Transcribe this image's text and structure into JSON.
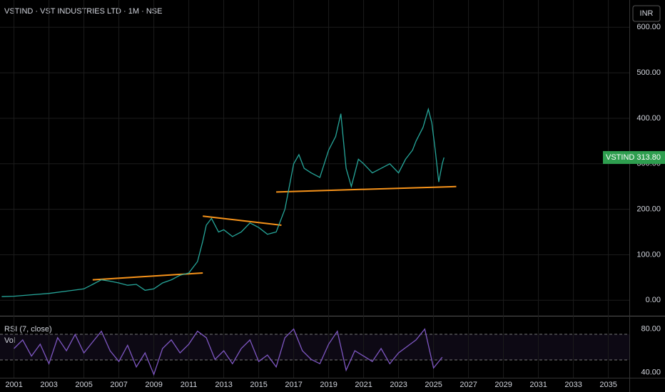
{
  "chart_data": [
    {
      "type": "line",
      "title": "VSTIND · VST INDUSTRIES LTD · 1M · NSE",
      "currency": "INR",
      "symbol": "VSTIND",
      "x": [
        2000.3,
        2001,
        2002,
        2003,
        2004,
        2005,
        2005.5,
        2006,
        2006.5,
        2007,
        2007.5,
        2008,
        2008.5,
        2009,
        2009.5,
        2010,
        2010.5,
        2011,
        2011.5,
        2011.8,
        2012,
        2012.3,
        2012.7,
        2013,
        2013.5,
        2014,
        2014.5,
        2015,
        2015.5,
        2016,
        2016.5,
        2017,
        2017.3,
        2017.6,
        2018,
        2018.5,
        2019,
        2019.4,
        2019.7,
        2020,
        2020.3,
        2020.7,
        2021,
        2021.5,
        2022,
        2022.5,
        2023,
        2023.4,
        2023.8,
        2024,
        2024.4,
        2024.7,
        2024.9,
        2025.1,
        2025.3,
        2025.5,
        2025.6
      ],
      "series": [
        {
          "name": "VSTIND",
          "color": "#26a69a",
          "values": [
            8,
            9,
            12,
            15,
            20,
            25,
            35,
            45,
            42,
            38,
            33,
            35,
            22,
            25,
            38,
            45,
            55,
            60,
            85,
            130,
            165,
            180,
            150,
            155,
            140,
            150,
            170,
            160,
            145,
            150,
            200,
            300,
            320,
            290,
            280,
            270,
            330,
            360,
            410,
            290,
            250,
            310,
            300,
            280,
            290,
            300,
            280,
            310,
            330,
            350,
            380,
            420,
            390,
            330,
            260,
            300,
            313.8
          ],
          "value_labels": [
            null,
            null,
            null,
            null,
            null,
            null,
            null,
            null,
            null,
            null,
            null,
            null,
            null,
            null,
            null,
            null,
            null,
            null,
            null,
            null,
            null,
            null,
            null,
            null,
            null,
            null,
            null,
            null,
            null,
            null,
            null,
            null,
            null,
            null,
            null,
            null,
            null,
            null,
            null,
            null,
            null,
            null,
            null,
            null,
            null,
            null,
            null,
            null,
            null,
            null,
            null,
            null,
            null,
            null,
            null,
            null,
            "313.80"
          ]
        }
      ],
      "trendlines": [
        {
          "color": "#f7931a",
          "x": [
            2005.5,
            2011.8
          ],
          "values": [
            45,
            60
          ]
        },
        {
          "color": "#f7931a",
          "x": [
            2011.8,
            2016.3
          ],
          "values": [
            185,
            165
          ]
        },
        {
          "color": "#f7931a",
          "x": [
            2016,
            2026.3
          ],
          "values": [
            238,
            250
          ]
        }
      ],
      "xlim": [
        2000.2,
        2036.2
      ],
      "xticks": [
        2001,
        2003,
        2005,
        2007,
        2009,
        2011,
        2013,
        2015,
        2017,
        2019,
        2021,
        2023,
        2025,
        2027,
        2029,
        2031,
        2033,
        2035
      ],
      "ylim": [
        -34,
        660
      ],
      "yticks": [
        {
          "value": 0,
          "label": "0.00"
        },
        {
          "value": 100,
          "label": "100.00"
        },
        {
          "value": 200,
          "label": "200.00"
        },
        {
          "value": 300,
          "label": "300.00"
        },
        {
          "value": 400,
          "label": "400.00"
        },
        {
          "value": 500,
          "label": "500.00"
        },
        {
          "value": 600,
          "label": "600.00"
        }
      ],
      "grid": true
    },
    {
      "type": "line",
      "title": "RSI (7, close)",
      "subtitle": "Vol",
      "x": [
        2001,
        2001.5,
        2002,
        2002.5,
        2003,
        2003.5,
        2004,
        2004.5,
        2005,
        2005.5,
        2006,
        2006.5,
        2007,
        2007.5,
        2008,
        2008.5,
        2009,
        2009.5,
        2010,
        2010.5,
        2011,
        2011.5,
        2012,
        2012.5,
        2013,
        2013.5,
        2014,
        2014.5,
        2015,
        2015.5,
        2016,
        2016.5,
        2017,
        2017.5,
        2018,
        2018.5,
        2019,
        2019.5,
        2020,
        2020.5,
        2021,
        2021.5,
        2022,
        2022.5,
        2023,
        2023.5,
        2024,
        2024.5,
        2025,
        2025.5
      ],
      "series": [
        {
          "name": "RSI",
          "color": "#7e57c2",
          "values": [
            62,
            70,
            55,
            66,
            48,
            72,
            60,
            75,
            58,
            68,
            78,
            60,
            50,
            65,
            45,
            58,
            38,
            62,
            70,
            58,
            66,
            78,
            72,
            52,
            60,
            48,
            62,
            70,
            50,
            56,
            45,
            72,
            80,
            60,
            52,
            48,
            66,
            78,
            42,
            60,
            55,
            50,
            62,
            48,
            58,
            64,
            70,
            80,
            44,
            54
          ]
        }
      ],
      "xlim": [
        2000.2,
        2036.2
      ],
      "ylim": [
        35,
        91
      ],
      "yticks": [
        {
          "value": 40,
          "label": "40.00"
        },
        {
          "value": 80,
          "label": "80.00"
        }
      ]
    }
  ]
}
